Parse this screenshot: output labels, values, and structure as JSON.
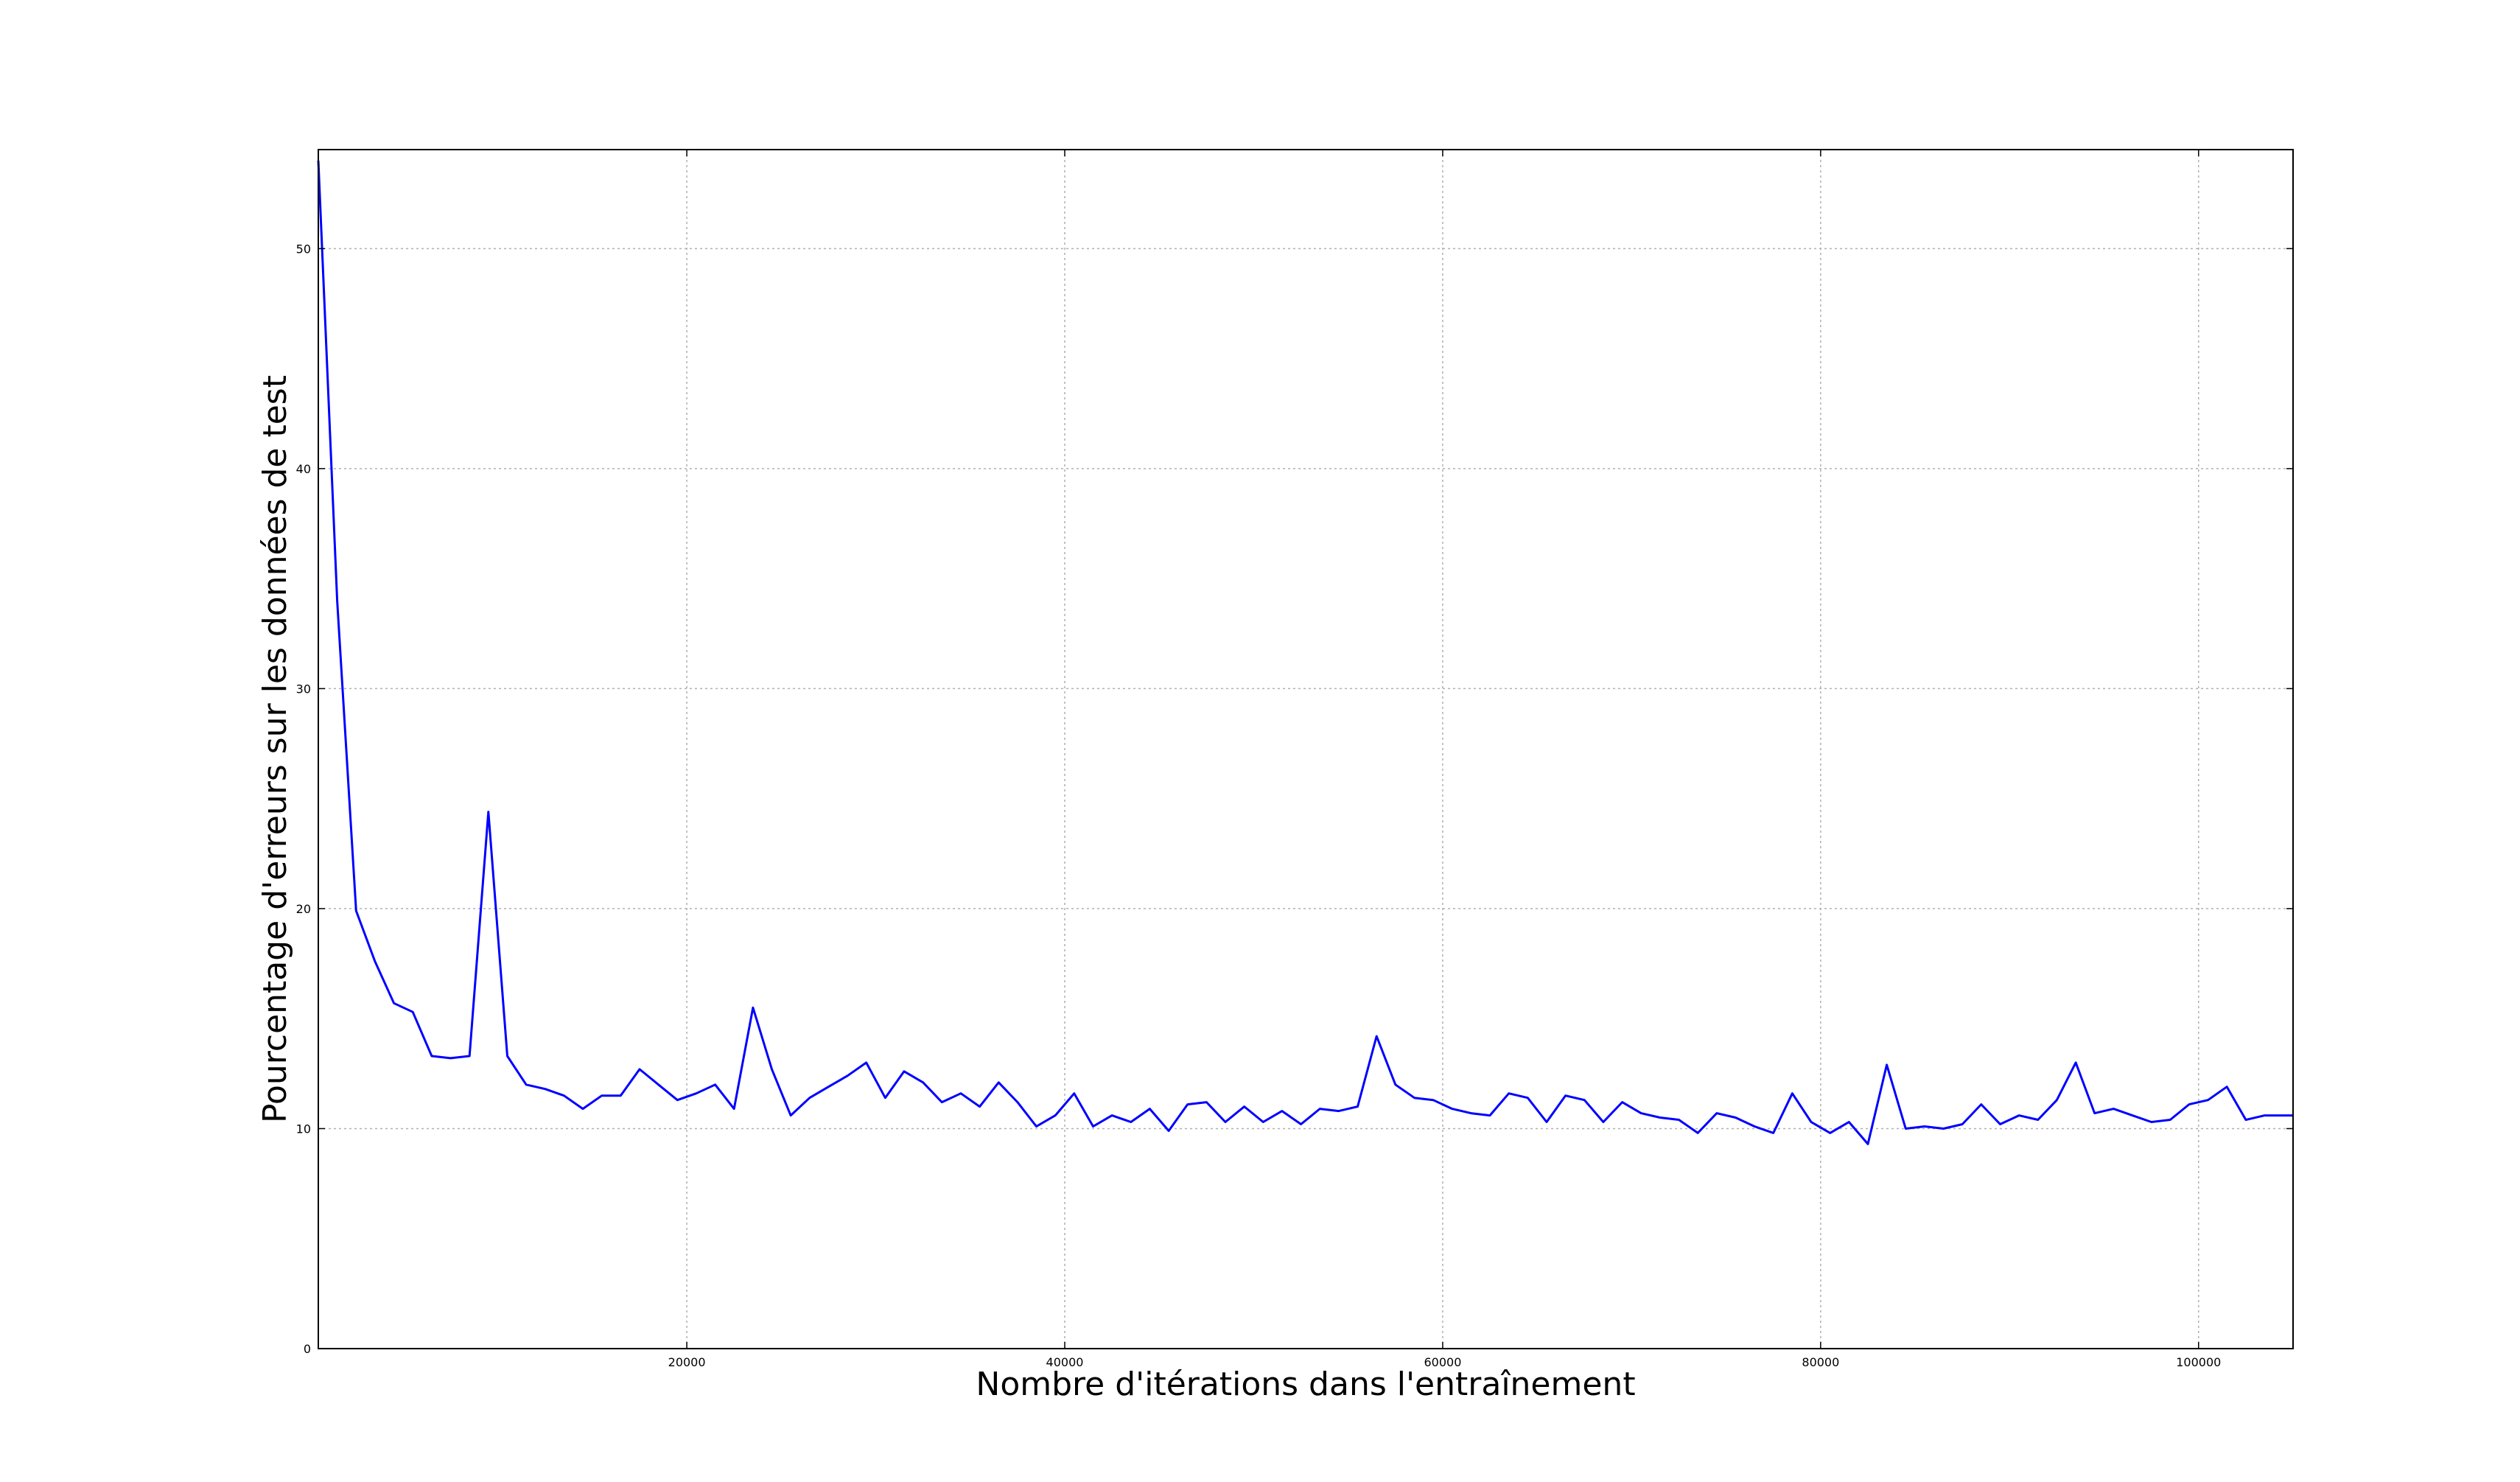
{
  "chart_data": {
    "type": "line",
    "title": "",
    "xlabel": "Nombre d'itérations dans l'entraînement",
    "ylabel": "Pourcentage d'erreurs sur les données de test",
    "xlim": [
      500,
      105000
    ],
    "ylim": [
      0,
      54.5
    ],
    "xticks": [
      20000,
      40000,
      60000,
      80000,
      100000
    ],
    "xtick_labels": [
      "20000",
      "40000",
      "60000",
      "80000",
      "100000"
    ],
    "yticks": [
      0,
      10,
      20,
      30,
      40,
      50
    ],
    "ytick_labels": [
      "0",
      "10",
      "20",
      "30",
      "40",
      "50"
    ],
    "grid": true,
    "series": [
      {
        "color": "#0000ff",
        "x": [
          500,
          1500,
          2500,
          3500,
          4500,
          5500,
          6500,
          7500,
          8500,
          9500,
          10500,
          11500,
          12500,
          13500,
          14500,
          15500,
          16500,
          17500,
          18500,
          19500,
          20500,
          21500,
          22500,
          23500,
          24500,
          25500,
          26500,
          27500,
          28500,
          29500,
          30500,
          31500,
          32500,
          33500,
          34500,
          35500,
          36500,
          37500,
          38500,
          39500,
          40500,
          41500,
          42500,
          43500,
          44500,
          45500,
          46500,
          47500,
          48500,
          49500,
          50500,
          51500,
          52500,
          53500,
          54500,
          55500,
          56500,
          57500,
          58500,
          59500,
          60500,
          61500,
          62500,
          63500,
          64500,
          65500,
          66500,
          67500,
          68500,
          69500,
          70500,
          71500,
          72500,
          73500,
          74500,
          75500,
          76500,
          77500,
          78500,
          79500,
          80500,
          81500,
          82500,
          83500,
          84500,
          85500,
          86500,
          87500,
          88500,
          89500,
          90500,
          91500,
          92500,
          93500,
          94500,
          95500,
          96500,
          97500,
          98500,
          99500,
          100500,
          101500,
          102500,
          103500,
          104500,
          105000
        ],
        "y": [
          54.0,
          34.0,
          19.9,
          17.6,
          15.7,
          15.3,
          13.3,
          13.2,
          13.3,
          24.4,
          13.3,
          12.0,
          11.8,
          11.5,
          10.9,
          11.5,
          11.5,
          12.7,
          12.0,
          11.3,
          11.6,
          12.0,
          10.9,
          15.5,
          12.7,
          10.6,
          11.4,
          11.9,
          12.4,
          13.0,
          11.4,
          12.6,
          12.1,
          11.2,
          11.6,
          11.0,
          12.1,
          11.2,
          10.1,
          10.6,
          11.6,
          10.1,
          10.6,
          10.3,
          10.9,
          9.9,
          11.1,
          11.2,
          10.3,
          11.0,
          10.3,
          10.8,
          10.2,
          10.9,
          10.8,
          11.0,
          14.2,
          12.0,
          11.4,
          11.3,
          10.9,
          10.7,
          10.6,
          11.6,
          11.4,
          10.3,
          11.5,
          11.3,
          10.3,
          11.2,
          10.7,
          10.5,
          10.4,
          9.8,
          10.7,
          10.5,
          10.1,
          9.8,
          11.6,
          10.3,
          9.8,
          10.3,
          9.3,
          12.9,
          10.0,
          10.1,
          10.0,
          10.2,
          11.1,
          10.2,
          10.6,
          10.4,
          11.3,
          13.0,
          10.7,
          10.9,
          10.6,
          10.3,
          10.4,
          11.1,
          11.3,
          11.9,
          10.4,
          10.6,
          10.6,
          10.6
        ]
      }
    ]
  }
}
